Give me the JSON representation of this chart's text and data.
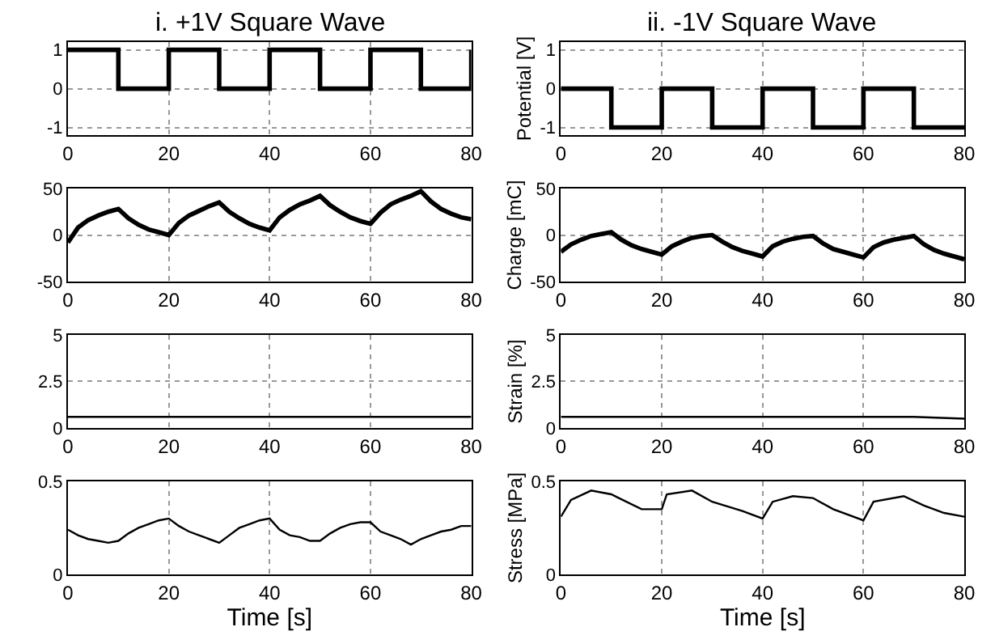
{
  "chart_data": [
    {
      "type": "step",
      "title": "i. +1V Square Wave",
      "x": [
        0,
        10,
        20,
        30,
        40,
        50,
        60,
        70,
        80
      ],
      "xlim": [
        0,
        80
      ],
      "xticks": [
        0,
        20,
        40,
        60,
        80
      ],
      "ylim": [
        -1.2,
        1.2
      ],
      "yticks": [
        -1,
        0,
        1
      ],
      "grid": true,
      "line_style": "solid",
      "series": [
        {
          "color": "#000000",
          "values": [
            1,
            0,
            1,
            0,
            1,
            0,
            1,
            0,
            1
          ]
        }
      ]
    },
    {
      "type": "step",
      "title": "ii. -1V Square Wave",
      "ylabel": "Potential [V]",
      "x": [
        0,
        10,
        20,
        30,
        40,
        50,
        60,
        70,
        80
      ],
      "xlim": [
        0,
        80
      ],
      "xticks": [
        0,
        20,
        40,
        60,
        80
      ],
      "ylim": [
        -1.2,
        1.2
      ],
      "yticks": [
        -1,
        0,
        1
      ],
      "grid": true,
      "line_style": "solid",
      "series": [
        {
          "color": "#000000",
          "values": [
            0,
            -1,
            0,
            -1,
            0,
            -1,
            0,
            -1,
            -1
          ]
        }
      ]
    },
    {
      "type": "line",
      "x": [
        0,
        2,
        4,
        6,
        8,
        10,
        12,
        14,
        16,
        18,
        20,
        22,
        24,
        26,
        28,
        30,
        32,
        34,
        36,
        38,
        40,
        42,
        44,
        46,
        48,
        50,
        52,
        54,
        56,
        58,
        60,
        62,
        64,
        66,
        68,
        70,
        72,
        74,
        76,
        78,
        80
      ],
      "xlim": [
        0,
        80
      ],
      "xticks": [
        0,
        20,
        40,
        60,
        80
      ],
      "ylim": [
        -50,
        50
      ],
      "yticks": [
        -50,
        0,
        50
      ],
      "grid": true,
      "line_style": "solid",
      "series": [
        {
          "color": "#000000",
          "values": [
            -8,
            8,
            16,
            21,
            25,
            28,
            18,
            11,
            6,
            3,
            0,
            13,
            21,
            26,
            31,
            35,
            25,
            18,
            12,
            8,
            5,
            19,
            27,
            33,
            37,
            42,
            32,
            25,
            19,
            15,
            12,
            24,
            33,
            38,
            42,
            47,
            36,
            28,
            23,
            19,
            17
          ]
        }
      ]
    },
    {
      "type": "line",
      "ylabel": "Charge [mC]",
      "x": [
        0,
        2,
        4,
        6,
        8,
        10,
        12,
        14,
        16,
        18,
        20,
        22,
        24,
        26,
        28,
        30,
        32,
        34,
        36,
        38,
        40,
        42,
        44,
        46,
        48,
        50,
        52,
        54,
        56,
        58,
        60,
        62,
        64,
        66,
        68,
        70,
        72,
        74,
        76,
        78,
        80
      ],
      "xlim": [
        0,
        80
      ],
      "xticks": [
        0,
        20,
        40,
        60,
        80
      ],
      "ylim": [
        -50,
        50
      ],
      "yticks": [
        -50,
        0,
        50
      ],
      "grid": true,
      "line_style": "solid",
      "series": [
        {
          "color": "#000000",
          "values": [
            -18,
            -10,
            -5,
            -1,
            1,
            3,
            -5,
            -11,
            -15,
            -18,
            -21,
            -12,
            -7,
            -3,
            -1,
            0,
            -7,
            -13,
            -17,
            -20,
            -23,
            -12,
            -7,
            -4,
            -2,
            -1,
            -9,
            -15,
            -18,
            -21,
            -24,
            -13,
            -8,
            -5,
            -3,
            -1,
            -10,
            -16,
            -20,
            -23,
            -26
          ]
        }
      ]
    },
    {
      "type": "line",
      "x": [
        0,
        10,
        20,
        30,
        40,
        50,
        60,
        70,
        80
      ],
      "xlim": [
        0,
        80
      ],
      "xticks": [
        0,
        20,
        40,
        60,
        80
      ],
      "ylim": [
        0,
        5
      ],
      "yticks": [
        0,
        2.5,
        5
      ],
      "grid": true,
      "line_style": "solid",
      "series": [
        {
          "color": "#000000",
          "values": [
            0.6,
            0.6,
            0.6,
            0.6,
            0.6,
            0.6,
            0.6,
            0.6,
            0.6
          ]
        }
      ]
    },
    {
      "type": "line",
      "ylabel": "Strain [%]",
      "x": [
        0,
        10,
        20,
        30,
        40,
        50,
        60,
        70,
        80
      ],
      "xlim": [
        0,
        80
      ],
      "xticks": [
        0,
        20,
        40,
        60,
        80
      ],
      "ylim": [
        0,
        5
      ],
      "yticks": [
        0,
        2.5,
        5
      ],
      "grid": true,
      "line_style": "solid",
      "series": [
        {
          "color": "#000000",
          "values": [
            0.6,
            0.6,
            0.6,
            0.6,
            0.6,
            0.6,
            0.6,
            0.6,
            0.5
          ]
        }
      ]
    },
    {
      "type": "line",
      "xlabel": "Time [s]",
      "x": [
        0,
        2,
        4,
        6,
        8,
        10,
        12,
        14,
        16,
        18,
        20,
        22,
        24,
        26,
        28,
        30,
        32,
        34,
        36,
        38,
        40,
        42,
        44,
        46,
        48,
        50,
        52,
        54,
        56,
        58,
        60,
        62,
        64,
        66,
        68,
        70,
        72,
        74,
        76,
        78,
        80
      ],
      "xlim": [
        0,
        80
      ],
      "xticks": [
        0,
        20,
        40,
        60,
        80
      ],
      "ylim": [
        0,
        0.5
      ],
      "yticks": [
        0,
        0.5
      ],
      "grid": true,
      "line_style": "solid",
      "series": [
        {
          "color": "#000000",
          "values": [
            0.24,
            0.21,
            0.19,
            0.18,
            0.17,
            0.18,
            0.22,
            0.25,
            0.27,
            0.29,
            0.3,
            0.26,
            0.23,
            0.21,
            0.19,
            0.17,
            0.21,
            0.25,
            0.27,
            0.29,
            0.3,
            0.24,
            0.21,
            0.2,
            0.18,
            0.18,
            0.22,
            0.25,
            0.27,
            0.28,
            0.28,
            0.23,
            0.21,
            0.19,
            0.16,
            0.19,
            0.21,
            0.23,
            0.24,
            0.26,
            0.26
          ]
        }
      ]
    },
    {
      "type": "line",
      "xlabel": "Time [s]",
      "ylabel": "Stress [MPa]",
      "x": [
        0,
        2,
        6,
        10,
        16,
        20,
        21,
        26,
        30,
        36,
        40,
        42,
        46,
        50,
        54,
        60,
        62,
        68,
        72,
        76,
        80
      ],
      "xlim": [
        0,
        80
      ],
      "xticks": [
        0,
        20,
        40,
        60,
        80
      ],
      "ylim": [
        0,
        0.5
      ],
      "yticks": [
        0,
        0.5
      ],
      "grid": true,
      "line_style": "solid",
      "series": [
        {
          "color": "#000000",
          "values": [
            0.31,
            0.4,
            0.45,
            0.43,
            0.35,
            0.35,
            0.43,
            0.45,
            0.39,
            0.34,
            0.3,
            0.39,
            0.42,
            0.41,
            0.35,
            0.29,
            0.39,
            0.42,
            0.37,
            0.33,
            0.31
          ]
        }
      ]
    }
  ]
}
